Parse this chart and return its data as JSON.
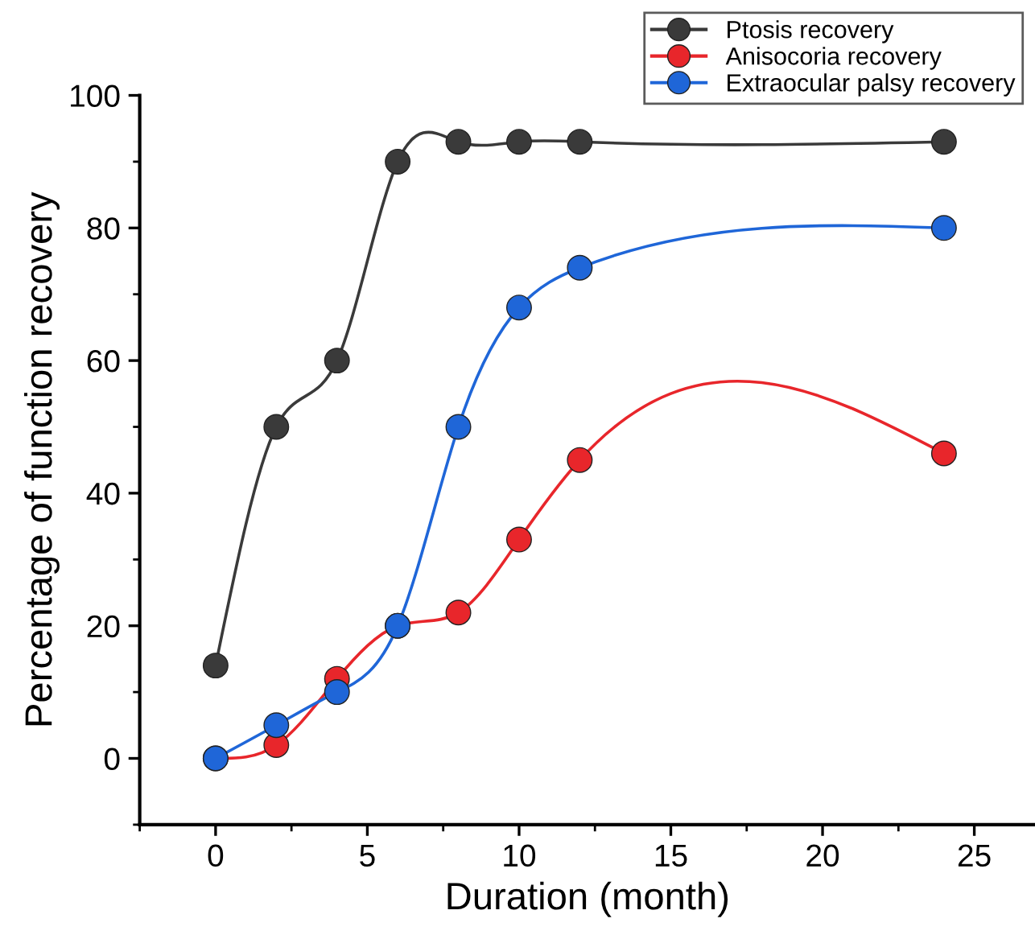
{
  "chart_data": {
    "type": "line",
    "xlabel": "Duration (month)",
    "ylabel": "Percentage of function recovery",
    "x": [
      0,
      2,
      4,
      6,
      8,
      10,
      12,
      24
    ],
    "series": [
      {
        "name": "Ptosis recovery",
        "color": "#3a3a3a",
        "values": [
          14,
          50,
          60,
          90,
          93,
          93,
          93,
          93
        ]
      },
      {
        "name": "Anisocoria recovery",
        "color": "#e8262b",
        "values": [
          0,
          2,
          12,
          20,
          22,
          33,
          45,
          46
        ]
      },
      {
        "name": "Extraocular palsy recovery",
        "color": "#1f66d8",
        "values": [
          0,
          5,
          10,
          20,
          50,
          68,
          74,
          80
        ]
      }
    ],
    "xlim": [
      -2.5,
      27
    ],
    "ylim": [
      -10,
      100
    ],
    "xticks": [
      0,
      5,
      10,
      15,
      20,
      25
    ],
    "yticks": [
      0,
      20,
      40,
      60,
      80,
      100
    ],
    "marker": "circle",
    "line_style": "solid",
    "grid": false,
    "legend": "top right"
  }
}
